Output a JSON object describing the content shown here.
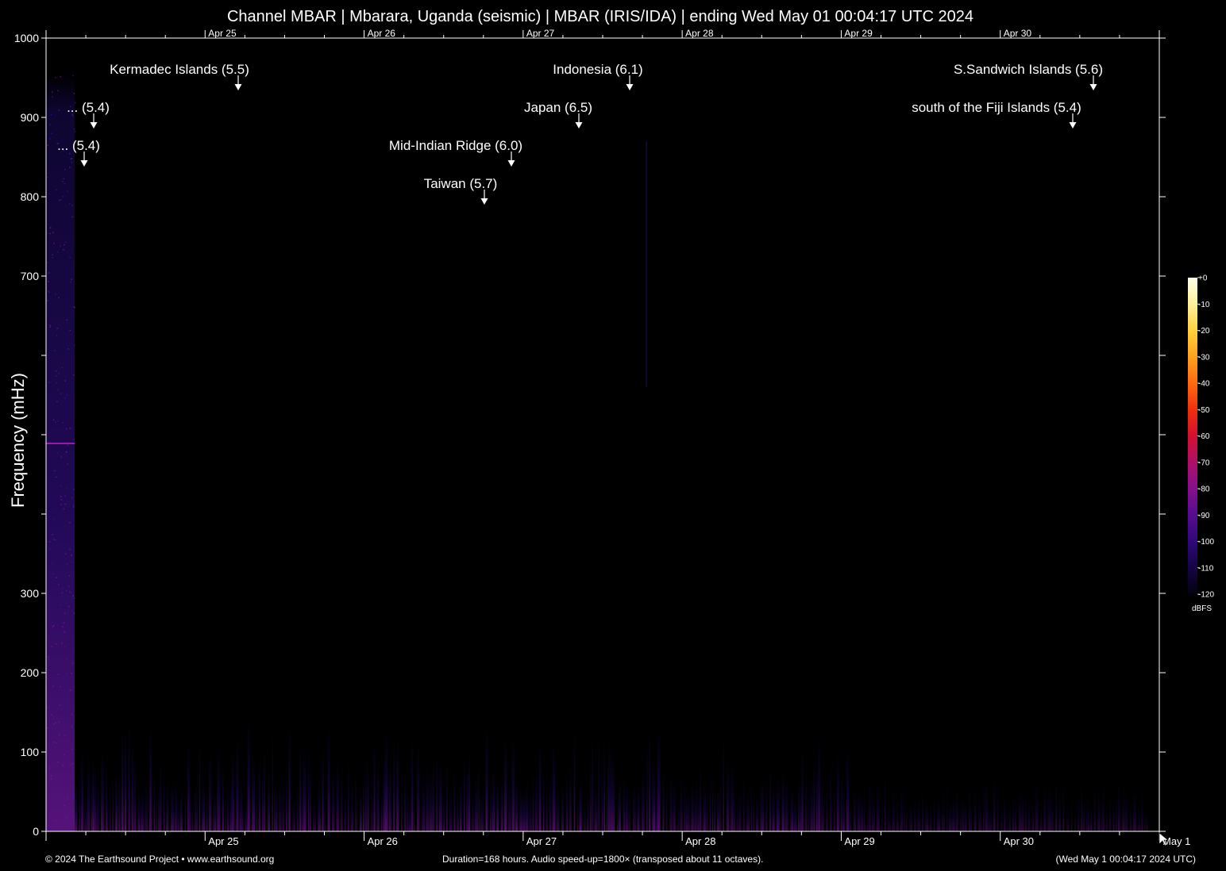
{
  "title": "Channel MBAR | Mbarara, Uganda (seismic) | MBAR (IRIS/IDA) | ending Wed May 01 00:04:17 UTC 2024",
  "footer": {
    "copyright": "© 2024 The Earthsound Project • www.earthsound.org",
    "duration": "Duration=168 hours. Audio speed-up=1800× (transposed about 11 octaves).",
    "end_time": "(Wed May  1 00:04:17 2024 UTC)"
  },
  "colorbar": {
    "unit": "dBFS",
    "ticks": [
      "+0",
      "-10",
      "-20",
      "-30",
      "-40",
      "-50",
      "-60",
      "-70",
      "-80",
      "-90",
      "-100",
      "-110",
      "-120"
    ],
    "colors": [
      "#ffffe6",
      "#fff09a",
      "#ffd23c",
      "#ffa21c",
      "#ff6a10",
      "#f0300c",
      "#d41030",
      "#ae1068",
      "#84108c",
      "#560c90",
      "#300878",
      "#140444",
      "#04010e"
    ]
  },
  "chart_data": {
    "type": "heatmap",
    "title": "Channel MBAR | Mbarara, Uganda (seismic) | MBAR (IRIS/IDA) | ending Wed May 01 00:04:17 UTC 2024",
    "xlabel": "",
    "ylabel": "Frequency (mHz)",
    "xlim_days_before_end": [
      7,
      0
    ],
    "ylim": [
      0,
      1000
    ],
    "y_tick_labels": [
      "0",
      "100",
      "200",
      "300",
      "700",
      "800",
      "900",
      "1000"
    ],
    "y_tick_values": [
      0,
      100,
      200,
      300,
      700,
      800,
      900,
      1000
    ],
    "y_unlabeled_ticks": [
      400,
      500,
      600
    ],
    "x_tick_labels": [
      "Apr 25",
      "Apr 26",
      "Apr 27",
      "Apr 28",
      "Apr 29",
      "Apr 30",
      "May  1"
    ],
    "x_tick_days_before_end": [
      6,
      5,
      4,
      3,
      2,
      1,
      0
    ],
    "data_gap_until_days_before_end": 6.82,
    "events": [
      {
        "label": "Kermadec Islands (5.5)",
        "days_before_end": 5.8
      },
      {
        "label": "... (5.4)",
        "days_before_end": 6.7
      },
      {
        "label": "... (5.4)",
        "days_before_end": 6.76
      },
      {
        "label": "Indonesia (6.1)",
        "days_before_end": 3.33
      },
      {
        "label": "Japan (6.5)",
        "days_before_end": 3.65
      },
      {
        "label": "Mid-Indian Ridge (6.0)",
        "days_before_end": 4.08
      },
      {
        "label": "Taiwan (5.7)",
        "days_before_end": 4.25
      },
      {
        "label": "S.Sandwich Islands (5.6)",
        "days_before_end": 0.4
      },
      {
        "label": "south of the Fiji Islands (5.4)",
        "days_before_end": 0.53
      }
    ],
    "features": [
      {
        "label": "narrowband line",
        "freq_mHz": 489,
        "days_before_end": [
          7,
          6.82
        ]
      }
    ]
  }
}
